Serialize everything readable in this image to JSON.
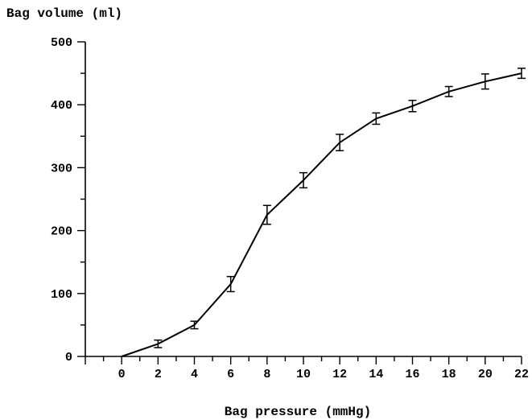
{
  "chart_data": {
    "type": "line",
    "title": "",
    "xlabel": "Bag pressure (mmHg)",
    "ylabel": "Bag volume (ml)",
    "xlim": [
      -2,
      22
    ],
    "ylim": [
      0,
      500
    ],
    "xticks": [
      0,
      2,
      4,
      6,
      8,
      10,
      12,
      14,
      16,
      18,
      20,
      22
    ],
    "yticks": [
      0,
      100,
      200,
      300,
      400,
      500
    ],
    "grid": false,
    "legend": "none",
    "error_bars": true,
    "series": [
      {
        "x": [
          0,
          2,
          4,
          6,
          8,
          10,
          12,
          14,
          16,
          18,
          20,
          22
        ],
        "y": [
          0,
          20,
          50,
          115,
          225,
          280,
          340,
          378,
          398,
          421,
          437,
          450
        ],
        "err": [
          0,
          6,
          6,
          12,
          15,
          12,
          13,
          9,
          9,
          8,
          12,
          8
        ]
      }
    ],
    "colors": {
      "line": "#000000",
      "axis": "#000000"
    }
  }
}
